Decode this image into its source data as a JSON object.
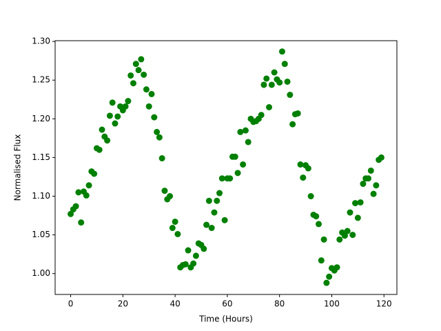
{
  "chart_data": {
    "type": "scatter",
    "xlabel": "Time (Hours)",
    "ylabel": "Normalised Flux",
    "color": "#008000",
    "x": [
      0,
      1,
      2,
      3,
      4,
      5,
      6,
      7,
      8,
      9,
      10,
      11,
      12,
      13,
      14,
      15,
      16,
      17,
      18,
      19,
      20,
      21,
      22,
      23,
      24,
      25,
      26,
      27,
      28,
      29,
      30,
      31,
      32,
      33,
      34,
      35,
      36,
      37,
      38,
      39,
      40,
      41,
      42,
      43,
      44,
      45,
      46,
      47,
      48,
      49,
      50,
      51,
      52,
      53,
      54,
      55,
      56,
      57,
      58,
      59,
      60,
      61,
      62,
      63,
      64,
      65,
      66,
      67,
      68,
      69,
      70,
      71,
      72,
      73,
      74,
      75,
      76,
      77,
      78,
      79,
      80,
      81,
      82,
      83,
      84,
      85,
      86,
      87,
      88,
      89,
      90,
      91,
      92,
      93,
      94,
      95,
      96,
      97,
      98,
      99,
      100,
      101,
      102,
      103,
      104,
      105,
      106,
      107,
      108,
      109,
      110,
      111,
      112,
      113,
      114,
      115,
      116,
      117,
      118,
      119
    ],
    "values": [
      1.077,
      1.083,
      1.087,
      1.105,
      1.066,
      1.106,
      1.101,
      1.114,
      1.132,
      1.129,
      1.162,
      1.16,
      1.186,
      1.177,
      1.172,
      1.204,
      1.221,
      1.194,
      1.203,
      1.216,
      1.211,
      1.216,
      1.223,
      1.256,
      1.246,
      1.271,
      1.263,
      1.277,
      1.257,
      1.238,
      1.216,
      1.232,
      1.202,
      1.183,
      1.176,
      1.149,
      1.107,
      1.096,
      1.1,
      1.059,
      1.067,
      1.051,
      1.008,
      1.011,
      1.012,
      1.03,
      1.008,
      1.013,
      1.023,
      1.039,
      1.037,
      1.032,
      1.063,
      1.094,
      1.059,
      1.079,
      1.094,
      1.104,
      1.123,
      1.069,
      1.123,
      1.123,
      1.151,
      1.151,
      1.13,
      1.183,
      1.141,
      1.185,
      1.17,
      1.2,
      1.196,
      1.197,
      1.2,
      1.205,
      1.244,
      1.252,
      1.215,
      1.244,
      1.26,
      1.251,
      1.247,
      1.287,
      1.271,
      1.248,
      1.231,
      1.193,
      1.206,
      1.207,
      1.141,
      1.124,
      1.14,
      1.136,
      1.1,
      1.076,
      1.074,
      1.064,
      1.017,
      1.044,
      0.988,
      0.996,
      1.007,
      1.004,
      1.008,
      1.044,
      1.053,
      1.049,
      1.055,
      1.079,
      1.05,
      1.091,
      1.072,
      1.092,
      1.116,
      1.123,
      1.123,
      1.133,
      1.103,
      1.114,
      1.147,
      1.15
    ],
    "xlim": [
      -5.95,
      124.95
    ],
    "ylim": [
      0.973,
      1.301
    ],
    "xticks": [
      0,
      20,
      40,
      60,
      80,
      100,
      120
    ],
    "yticks": [
      {
        "value": 1,
        "label": "1.00"
      },
      {
        "value": 1.05,
        "label": "1.05"
      },
      {
        "value": 1.1,
        "label": "1.10"
      },
      {
        "value": 1.15,
        "label": "1.15"
      },
      {
        "value": 1.2,
        "label": "1.20"
      },
      {
        "value": 1.25,
        "label": "1.25"
      },
      {
        "value": 1.3,
        "label": "1.30"
      }
    ]
  }
}
